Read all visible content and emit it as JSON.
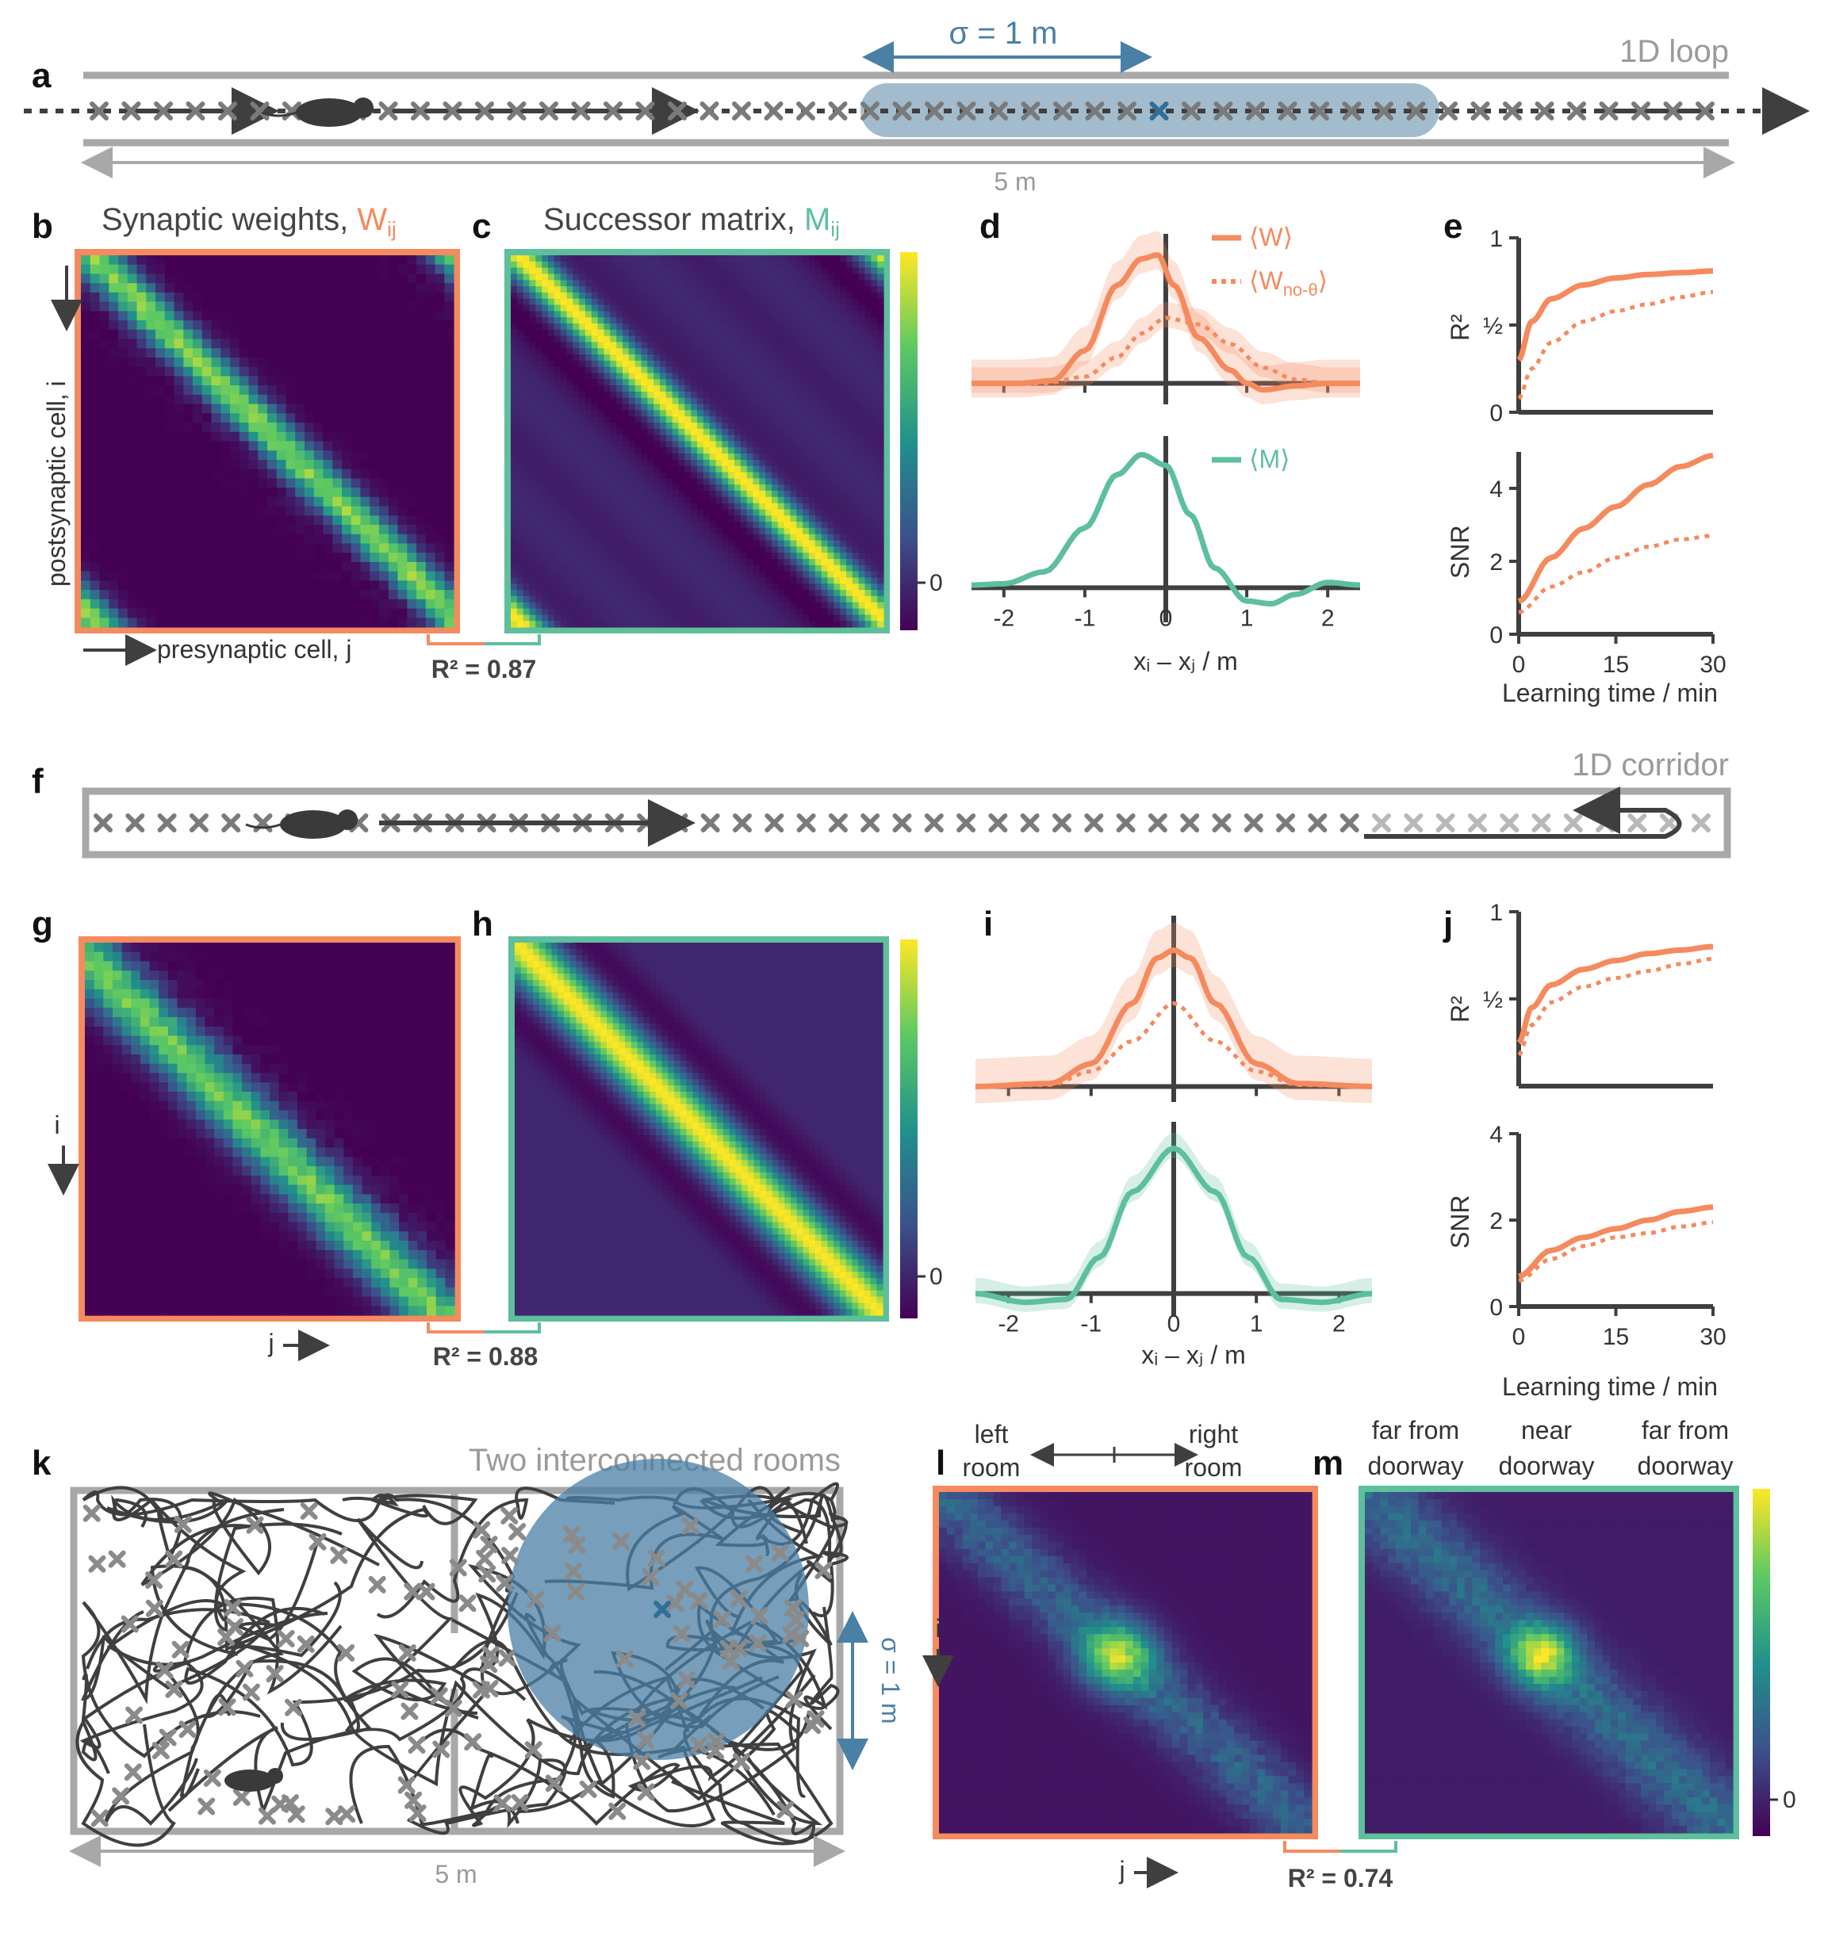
{
  "colors": {
    "orange": "#f58a5e",
    "teal": "#5dbf9b",
    "blue": "#4a7fa6",
    "blue_fill": "#a3bccd",
    "gray": "#a8a8a8",
    "dark": "#3f3f3f"
  },
  "panel_letters": {
    "a": "a",
    "b": "b",
    "c": "c",
    "d": "d",
    "e": "e",
    "f": "f",
    "g": "g",
    "h": "h",
    "i": "i",
    "j": "j",
    "k": "k",
    "l": "l",
    "m": "m"
  },
  "panel_a": {
    "title": "1D loop",
    "sigma": "σ = 1 m",
    "length": "5 m"
  },
  "panel_b": {
    "title_prefix": "Synaptic weights, ",
    "title_sym": "W",
    "title_sub": "ij",
    "ylabel": "postsynaptic cell, i",
    "xlabel": "presynaptic cell, j"
  },
  "panel_c": {
    "title_prefix": "Successor matrix, ",
    "title_sym": "M",
    "title_sub": "ij",
    "colorbar_tick": "0",
    "r2": "R² = 0.87"
  },
  "panel_d": {
    "legend_w": "⟨W⟩",
    "legend_wnt_main": "⟨W",
    "legend_wnt_sub": "no-θ",
    "legend_wnt_end": "⟩",
    "legend_m": "⟨M⟩",
    "xlabel": "xᵢ – xⱼ / m",
    "xticks": [
      "-2",
      "-1",
      "0",
      "1",
      "2"
    ]
  },
  "panel_e": {
    "r2_label": "R²",
    "r2_ticks": [
      "0",
      "½",
      "1"
    ],
    "snr_label": "SNR",
    "snr_ticks": [
      "0",
      "2",
      "4"
    ],
    "xticks": [
      "0",
      "15",
      "30"
    ],
    "xlabel": "Learning time / min"
  },
  "panel_f": {
    "title": "1D corridor"
  },
  "panel_g": {
    "ylabel": "i",
    "xlabel": "j"
  },
  "panel_h": {
    "colorbar_tick": "0",
    "r2": "R² = 0.88"
  },
  "panel_i": {
    "xlabel": "xᵢ – xⱼ / m",
    "xticks": [
      "-2",
      "-1",
      "0",
      "1",
      "2"
    ]
  },
  "panel_j": {
    "r2_label": "R²",
    "r2_ticks": [
      "½",
      "1"
    ],
    "snr_label": "SNR",
    "snr_ticks": [
      "0",
      "2",
      "4"
    ],
    "xticks": [
      "0",
      "15",
      "30"
    ],
    "xlabel": "Learning time / min"
  },
  "panel_k": {
    "title": "Two interconnected rooms",
    "sigma": "σ = 1 m",
    "length": "5 m"
  },
  "panel_l": {
    "left_top": "left",
    "left_bot": "room",
    "right_top": "right",
    "right_bot": "room",
    "ylabel": "i",
    "xlabel": "j",
    "r2": "R² = 0.74"
  },
  "panel_m": {
    "h1a": "far from",
    "h1b": "doorway",
    "h2a": "near",
    "h2b": "doorway",
    "h3a": "far from",
    "h3b": "doorway",
    "colorbar_tick": "0"
  },
  "chart_data": [
    {
      "type": "line",
      "panel": "d-top",
      "title": "",
      "xlabel": "xᵢ – xⱼ / m",
      "series": [
        {
          "name": "⟨W⟩",
          "x": [
            -2.4,
            -1.8,
            -1.4,
            -1.0,
            -0.6,
            -0.3,
            -0.1,
            0.1,
            0.4,
            0.8,
            1.0,
            1.2,
            1.6,
            2.0,
            2.4
          ],
          "values": [
            0,
            0,
            0.02,
            0.25,
            0.75,
            0.95,
            0.98,
            0.75,
            0.35,
            0.1,
            0.0,
            -0.05,
            -0.02,
            0,
            0
          ]
        },
        {
          "name": "⟨W no-θ⟩",
          "x": [
            -2.4,
            -1.5,
            -1.0,
            -0.6,
            -0.3,
            0.0,
            0.4,
            0.8,
            1.2,
            1.6,
            2.0,
            2.4
          ],
          "values": [
            0,
            0,
            0.05,
            0.2,
            0.38,
            0.5,
            0.45,
            0.3,
            0.12,
            0.03,
            0,
            0
          ]
        }
      ]
    },
    {
      "type": "line",
      "panel": "d-bottom",
      "xlabel": "xᵢ – xⱼ / m",
      "series": [
        {
          "name": "⟨M⟩",
          "x": [
            -2.4,
            -2.0,
            -1.5,
            -1.0,
            -0.6,
            -0.3,
            0.0,
            0.3,
            0.6,
            1.0,
            1.3,
            1.6,
            2.0,
            2.4
          ],
          "values": [
            0.02,
            0.03,
            0.12,
            0.45,
            0.85,
            1.0,
            0.92,
            0.55,
            0.15,
            -0.1,
            -0.12,
            -0.05,
            0.04,
            0.02
          ]
        }
      ]
    },
    {
      "type": "line",
      "panel": "e-R2",
      "ylim": [
        0,
        1
      ],
      "xlabel": "Learning time / min",
      "series": [
        {
          "name": "⟨W⟩",
          "x": [
            0,
            2,
            5,
            10,
            15,
            20,
            25,
            30
          ],
          "values": [
            0.3,
            0.52,
            0.65,
            0.73,
            0.77,
            0.79,
            0.8,
            0.81
          ]
        },
        {
          "name": "⟨W no-θ⟩",
          "x": [
            0,
            2,
            5,
            10,
            15,
            20,
            25,
            30
          ],
          "values": [
            0.08,
            0.25,
            0.4,
            0.52,
            0.58,
            0.62,
            0.66,
            0.69
          ]
        }
      ]
    },
    {
      "type": "line",
      "panel": "e-SNR",
      "ylim": [
        0,
        5
      ],
      "xlabel": "Learning time / min",
      "series": [
        {
          "name": "⟨W⟩",
          "x": [
            0,
            5,
            10,
            15,
            20,
            25,
            30
          ],
          "values": [
            0.9,
            2.1,
            2.9,
            3.5,
            4.1,
            4.6,
            4.9
          ]
        },
        {
          "name": "⟨W no-θ⟩",
          "x": [
            0,
            5,
            10,
            15,
            20,
            25,
            30
          ],
          "values": [
            0.6,
            1.3,
            1.7,
            2.1,
            2.4,
            2.6,
            2.7
          ]
        }
      ]
    },
    {
      "type": "line",
      "panel": "i-top",
      "xlabel": "xᵢ – xⱼ / m",
      "series": [
        {
          "name": "⟨W⟩",
          "x": [
            -2.4,
            -1.5,
            -1.0,
            -0.5,
            -0.2,
            0.0,
            0.2,
            0.5,
            1.0,
            1.5,
            2.4
          ],
          "values": [
            0,
            0.02,
            0.15,
            0.55,
            0.85,
            0.9,
            0.85,
            0.55,
            0.15,
            0.02,
            0
          ]
        },
        {
          "name": "⟨W no-θ⟩",
          "x": [
            -2.4,
            -1.5,
            -1.0,
            -0.5,
            0.0,
            0.5,
            1.0,
            1.5,
            2.4
          ],
          "values": [
            0,
            0.01,
            0.1,
            0.3,
            0.55,
            0.3,
            0.1,
            0.01,
            0
          ]
        }
      ]
    },
    {
      "type": "line",
      "panel": "i-bottom",
      "xlabel": "xᵢ – xⱼ / m",
      "series": [
        {
          "name": "⟨M⟩",
          "x": [
            -2.4,
            -1.8,
            -1.3,
            -0.9,
            -0.5,
            0.0,
            0.5,
            0.9,
            1.3,
            1.8,
            2.4
          ],
          "values": [
            0.0,
            -0.06,
            -0.04,
            0.25,
            0.7,
            1.0,
            0.7,
            0.25,
            -0.04,
            -0.06,
            0.0
          ]
        }
      ]
    },
    {
      "type": "line",
      "panel": "j-R2",
      "xlabel": "Learning time / min",
      "series": [
        {
          "name": "⟨W⟩",
          "x": [
            0,
            2,
            5,
            10,
            15,
            20,
            25,
            30
          ],
          "values": [
            0.25,
            0.45,
            0.58,
            0.67,
            0.72,
            0.76,
            0.78,
            0.8
          ]
        },
        {
          "name": "⟨W no-θ⟩",
          "x": [
            0,
            2,
            5,
            10,
            15,
            20,
            25,
            30
          ],
          "values": [
            0.18,
            0.35,
            0.48,
            0.57,
            0.62,
            0.66,
            0.7,
            0.73
          ]
        }
      ]
    },
    {
      "type": "line",
      "panel": "j-SNR",
      "ylim": [
        0,
        4
      ],
      "xlabel": "Learning time / min",
      "series": [
        {
          "name": "⟨W⟩",
          "x": [
            0,
            5,
            10,
            15,
            20,
            25,
            30
          ],
          "values": [
            0.7,
            1.3,
            1.6,
            1.8,
            2.0,
            2.2,
            2.3
          ]
        },
        {
          "name": "⟨W no-θ⟩",
          "x": [
            0,
            5,
            10,
            15,
            20,
            25,
            30
          ],
          "values": [
            0.6,
            1.1,
            1.4,
            1.6,
            1.7,
            1.85,
            1.95
          ]
        }
      ]
    }
  ]
}
